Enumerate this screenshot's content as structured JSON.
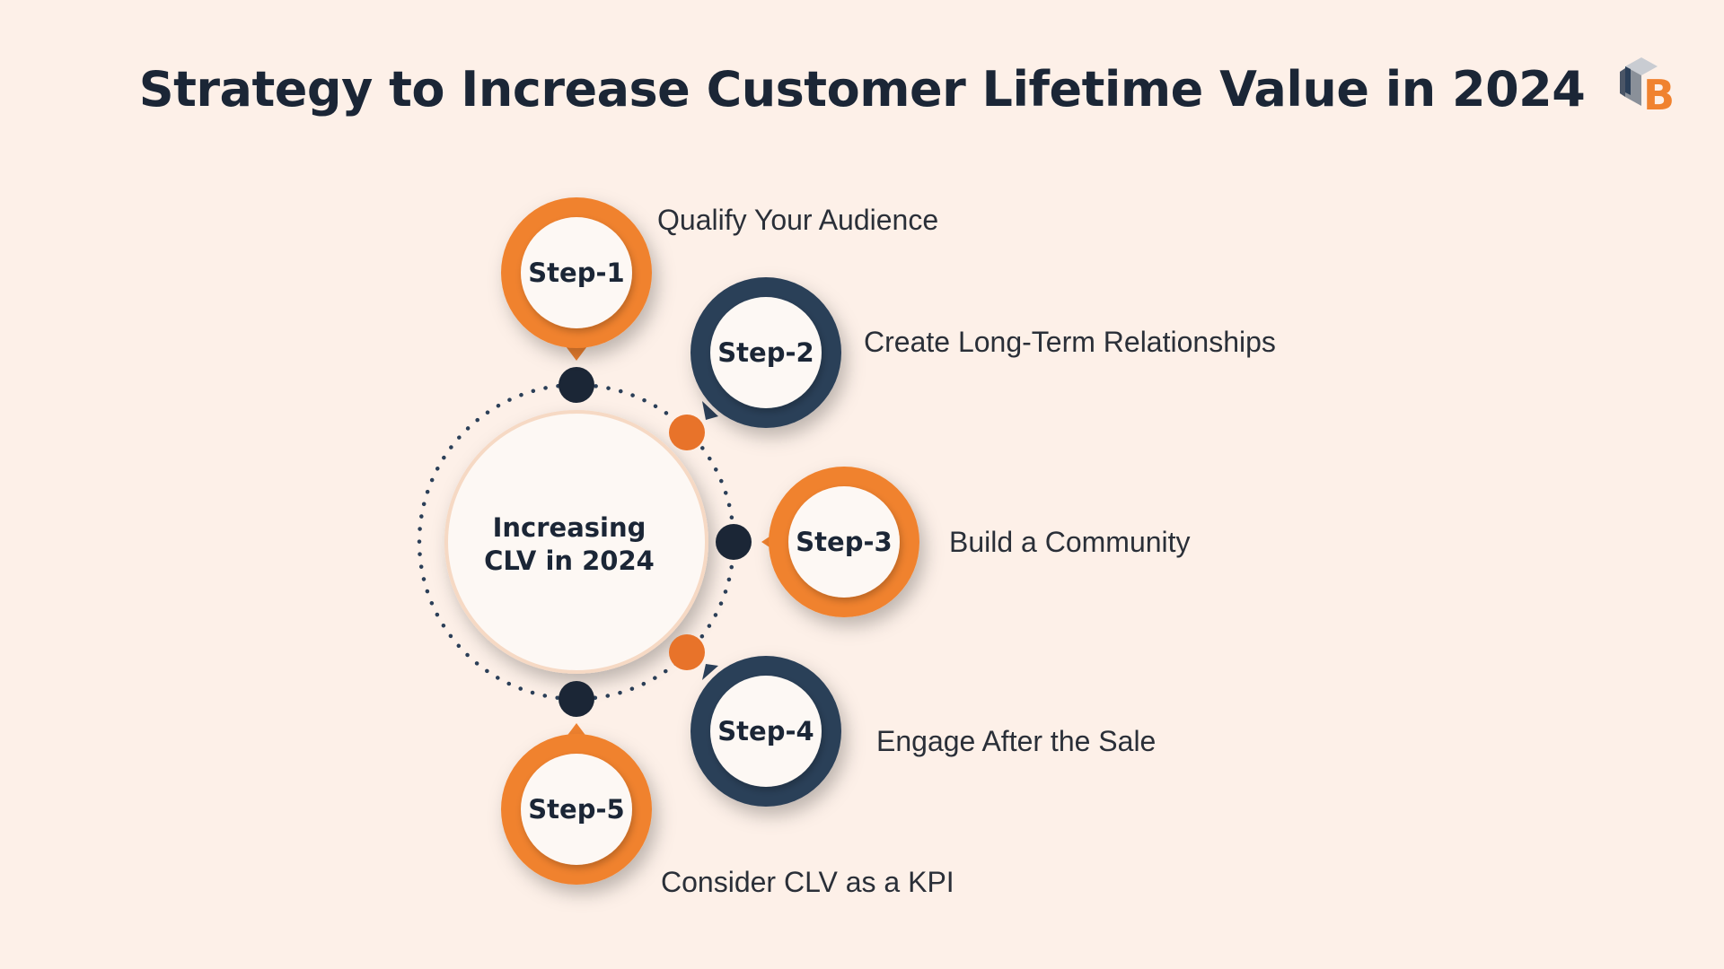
{
  "title": "Strategy to Increase Customer Lifetime Value in 2024",
  "center": {
    "line1": "Increasing",
    "line2": "CLV in 2024"
  },
  "steps": [
    {
      "badge": "Step-1",
      "label": "Qualify Your Audience",
      "color": "#f0822f"
    },
    {
      "badge": "Step-2",
      "label": "Create Long-Term Relationships",
      "color": "#2b3f58"
    },
    {
      "badge": "Step-3",
      "label": "Build a Community",
      "color": "#f0822f"
    },
    {
      "badge": "Step-4",
      "label": "Engage After the Sale",
      "color": "#2b3f58"
    },
    {
      "badge": "Step-5",
      "label": "Consider CLV as a KPI",
      "color": "#f0822f"
    }
  ],
  "logo": {
    "letter": "B",
    "icon": "brand-logo-icon"
  },
  "colors": {
    "background": "#fdf0e8",
    "orange": "#f0822f",
    "navy": "#2b3f58",
    "dark": "#1b2636",
    "dot_orange": "#e8732a"
  }
}
